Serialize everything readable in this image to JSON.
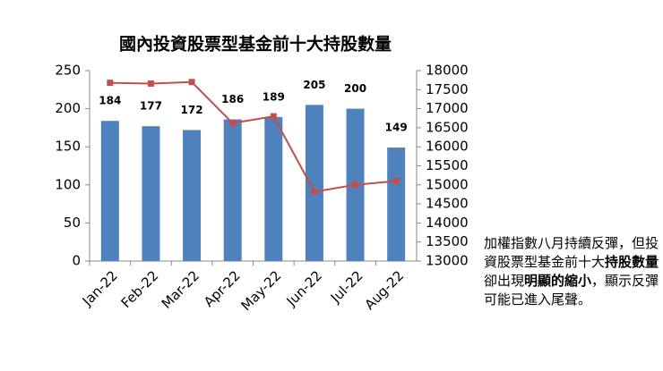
{
  "chart_data": {
    "type": "bar-line",
    "title": "國內投資股票型基金前十大持股數量",
    "categories": [
      "Jan-22",
      "Feb-22",
      "Mar-22",
      "Apr-22",
      "May-22",
      "Jun-22",
      "Jul-22",
      "Aug-22"
    ],
    "series": [
      {
        "type": "bar",
        "color": "#4f81bd",
        "values": [
          184,
          177,
          172,
          186,
          189,
          205,
          200,
          149
        ]
      },
      {
        "type": "line",
        "axis": "y2",
        "color": "#c0504d",
        "values": [
          17680,
          17660,
          17700,
          16620,
          16800,
          14820,
          15000,
          15100
        ]
      }
    ],
    "ylim": [
      0,
      250
    ],
    "yticks": [
      0,
      50,
      100,
      150,
      200,
      250
    ],
    "y2lim": [
      13000,
      18000
    ],
    "y2ticks": [
      13000,
      13500,
      14000,
      14500,
      15000,
      15500,
      16000,
      16500,
      17000,
      17500,
      18000
    ],
    "annotation": [
      {
        "text": "加權指數八月持續反彈，但投資股票型基金前十大",
        "bold": false
      },
      {
        "text": "持股數量",
        "bold": true
      },
      {
        "text": "卻出現",
        "bold": false
      },
      {
        "text": "明顯的縮小",
        "bold": true
      },
      {
        "text": "，顯示反彈可能已進入尾聲。",
        "bold": false
      }
    ]
  }
}
